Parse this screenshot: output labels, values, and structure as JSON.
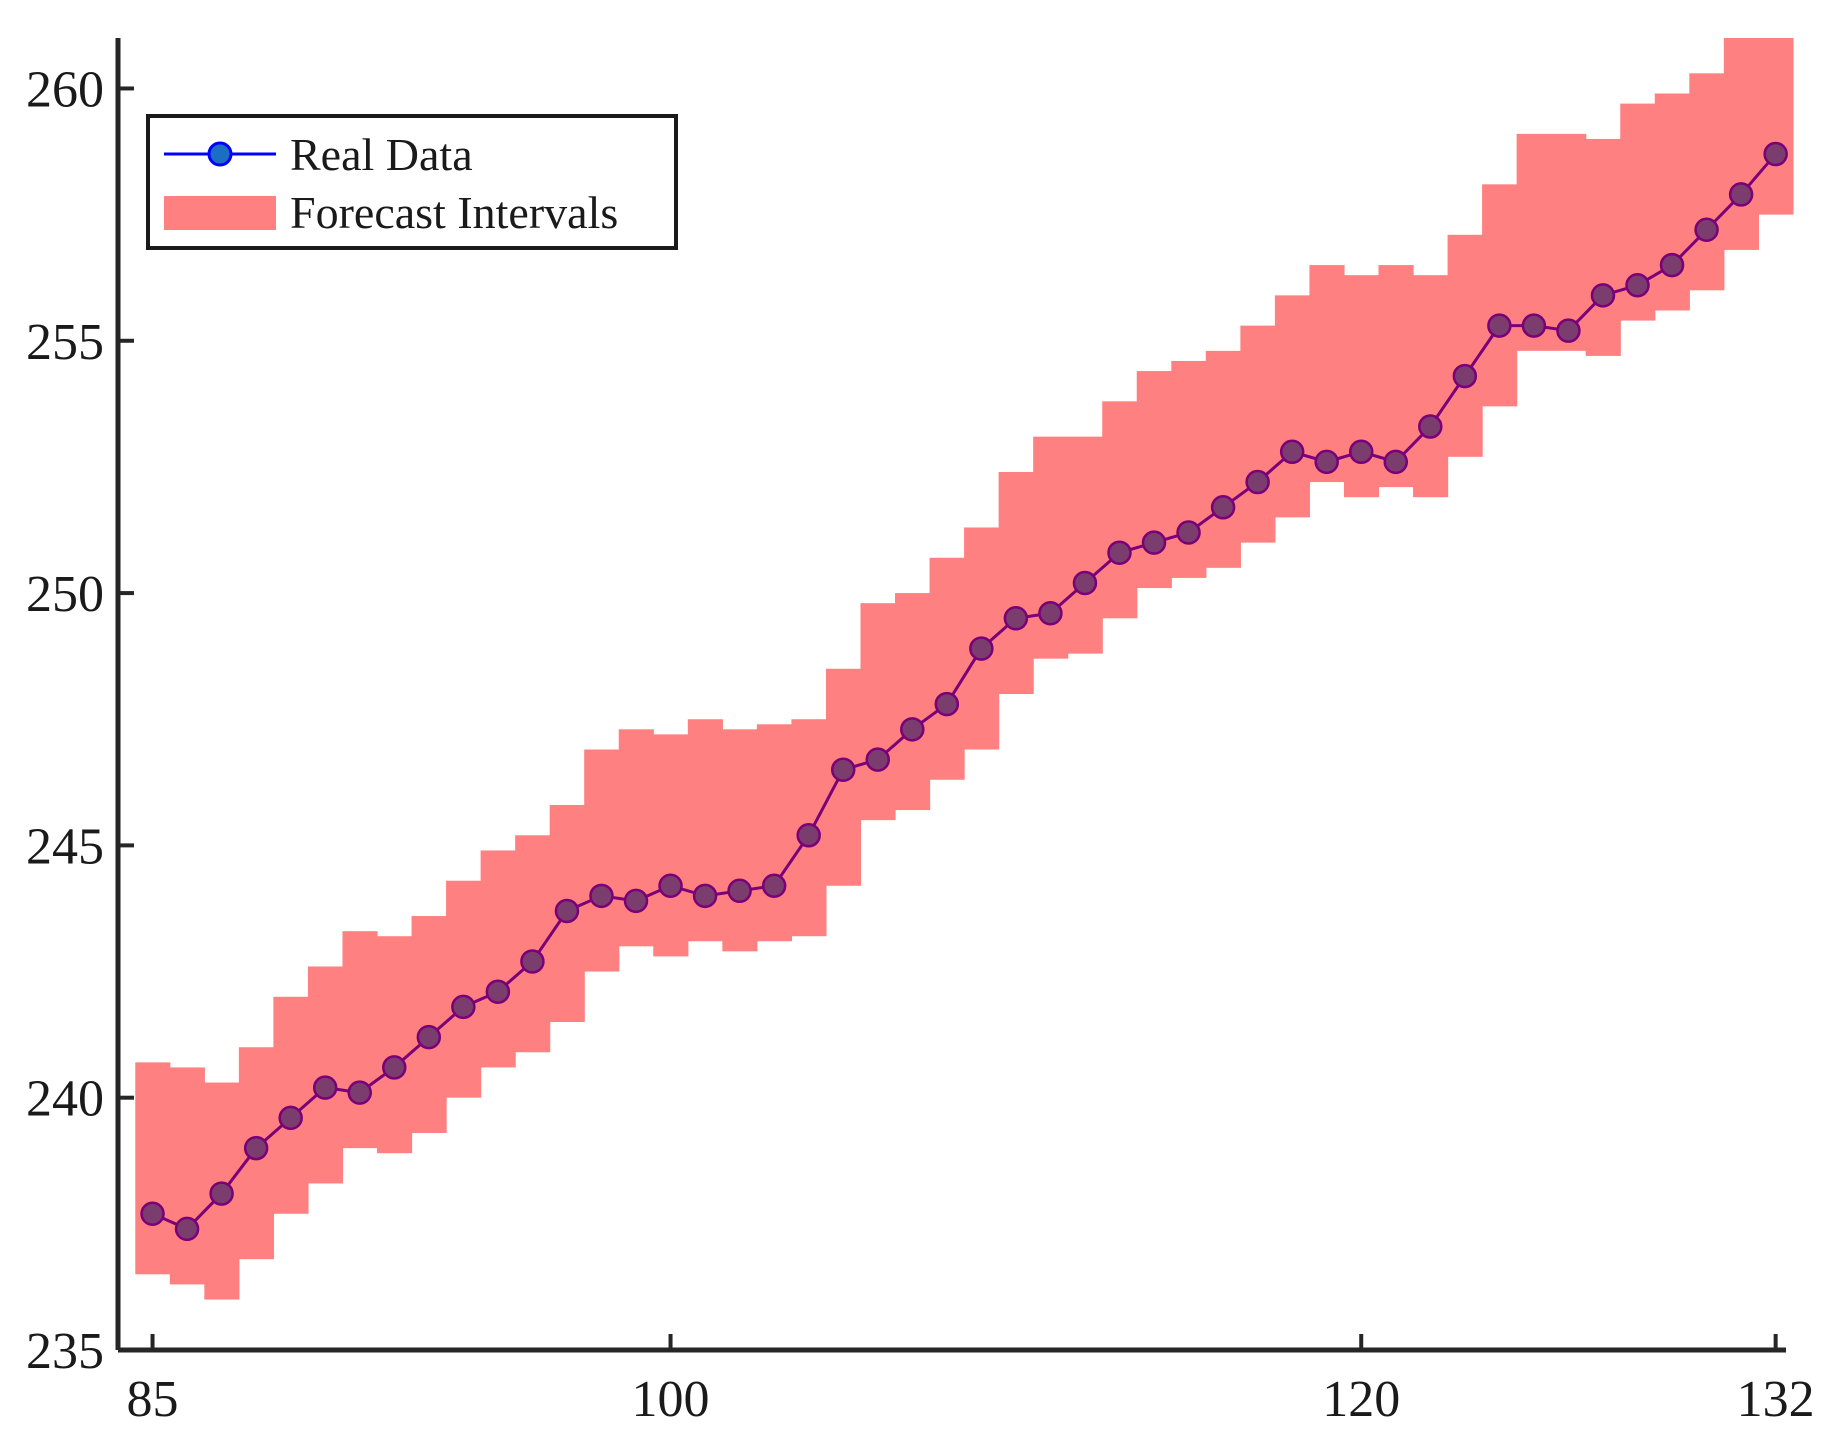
{
  "chart_data": {
    "type": "line",
    "title": "",
    "xlabel": "",
    "ylabel": "",
    "xlim": [
      84,
      132.3
    ],
    "ylim": [
      235,
      261
    ],
    "x_ticks": [
      85,
      100,
      120,
      132
    ],
    "y_ticks": [
      235,
      240,
      245,
      250,
      255,
      260
    ],
    "grid": false,
    "legend_position": "top-left",
    "colors": {
      "line": "#7a007a",
      "marker_fill": "#7a3d6e",
      "band": "#ff8080",
      "legend_line": "#0000ff",
      "legend_marker": "#1a6fc4",
      "axes": "#262626"
    },
    "legend": [
      {
        "label": "Real Data",
        "kind": "line-marker"
      },
      {
        "label": "Forecast Intervals",
        "kind": "patch"
      }
    ],
    "x": [
      85,
      86,
      87,
      88,
      89,
      90,
      91,
      92,
      93,
      94,
      95,
      96,
      97,
      98,
      99,
      100,
      101,
      102,
      103,
      104,
      105,
      106,
      107,
      108,
      109,
      110,
      111,
      112,
      113,
      114,
      115,
      116,
      117,
      118,
      119,
      120,
      121,
      122,
      123,
      124,
      125,
      126,
      127,
      128,
      129,
      130,
      131,
      132
    ],
    "series": [
      {
        "name": "Real Data",
        "values": [
          237.7,
          237.4,
          238.1,
          239.0,
          239.6,
          240.2,
          240.1,
          240.6,
          241.2,
          241.8,
          242.1,
          242.7,
          243.7,
          244.0,
          243.9,
          244.2,
          244.0,
          244.1,
          244.2,
          245.2,
          246.5,
          246.7,
          247.3,
          247.8,
          248.9,
          249.5,
          249.6,
          250.2,
          250.8,
          251.0,
          251.2,
          251.7,
          252.2,
          252.8,
          252.6,
          252.8,
          252.6,
          253.3,
          254.3,
          255.3,
          255.3,
          255.2,
          255.9,
          256.1,
          256.5,
          257.2,
          257.9,
          258.7
        ]
      },
      {
        "name": "Forecast Intervals",
        "lower": [
          236.5,
          236.3,
          236.0,
          236.8,
          237.7,
          238.3,
          239.0,
          238.9,
          239.3,
          240.0,
          240.6,
          240.9,
          241.5,
          242.5,
          243.0,
          242.8,
          243.1,
          242.9,
          243.1,
          243.2,
          244.2,
          245.5,
          245.7,
          246.3,
          246.9,
          248.0,
          248.7,
          248.8,
          249.5,
          250.1,
          250.3,
          250.5,
          251.0,
          251.5,
          252.2,
          251.9,
          252.1,
          251.9,
          252.7,
          253.7,
          254.8,
          254.8,
          254.7,
          255.4,
          255.6,
          256.0,
          256.8,
          257.5
        ],
        "upper": [
          240.7,
          240.6,
          240.3,
          241.0,
          242.0,
          242.6,
          243.3,
          243.2,
          243.6,
          244.3,
          244.9,
          245.2,
          245.8,
          246.9,
          247.3,
          247.2,
          247.5,
          247.3,
          247.4,
          247.5,
          248.5,
          249.8,
          250.0,
          250.7,
          251.3,
          252.4,
          253.1,
          253.1,
          253.8,
          254.4,
          254.6,
          254.8,
          255.3,
          255.9,
          256.5,
          256.3,
          256.5,
          256.3,
          257.1,
          258.1,
          259.1,
          259.1,
          259.0,
          259.7,
          259.9,
          260.3,
          261.0,
          261.0
        ]
      }
    ]
  }
}
